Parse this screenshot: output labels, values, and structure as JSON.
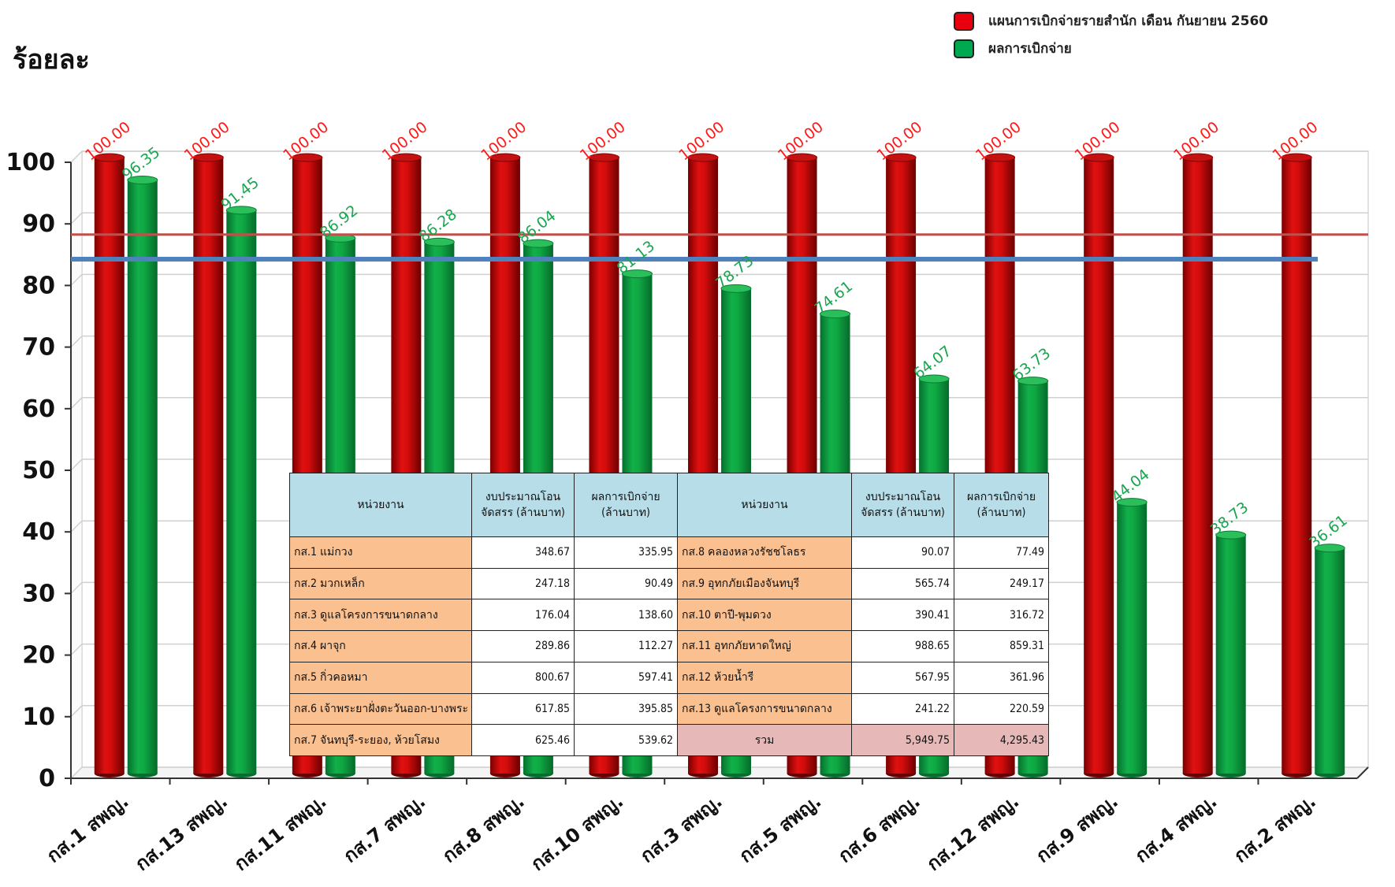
{
  "chart_data": {
    "type": "bar",
    "ylabel": "ร้อยละ",
    "ylim": [
      0,
      100
    ],
    "yticks": [
      0,
      10,
      20,
      30,
      40,
      50,
      60,
      70,
      80,
      90,
      100
    ],
    "grid": true,
    "legend_position": "top-right",
    "categories": [
      "กส.1 สพญ.",
      "กส.13 สพญ.",
      "กส.11 สพญ.",
      "กส.7 สพญ.",
      "กส.8 สพญ.",
      "กส.10 สพญ.",
      "กส.3 สพญ.",
      "กส.5 สพญ.",
      "กส.6 สพญ.",
      "กส.12 สพญ.",
      "กส.9 สพญ.",
      "กส.4 สพญ.",
      "กส.2 สพญ."
    ],
    "series": [
      {
        "name": "แผนการเบิกจ่ายรายสำนัก เดือน กันยายน 2560",
        "color": "#e01010",
        "values": [
          100,
          100,
          100,
          100,
          100,
          100,
          100,
          100,
          100,
          100,
          100,
          100,
          100
        ],
        "labels": [
          "100.00",
          "100.00",
          "100.00",
          "100.00",
          "100.00",
          "100.00",
          "100.00",
          "100.00",
          "100.00",
          "100.00",
          "100.00",
          "100.00",
          "100.00"
        ]
      },
      {
        "name": "ผลการเบิกจ่าย",
        "color": "#12b04a",
        "values": [
          96.35,
          91.45,
          86.92,
          86.28,
          86.04,
          81.13,
          78.73,
          74.61,
          64.07,
          63.73,
          44.04,
          38.73,
          36.61
        ],
        "labels": [
          "96.35",
          "91.45",
          "86.92",
          "86.28",
          "86.04",
          "81.13",
          "78.73",
          "74.61",
          "64.07",
          "63.73",
          "44.04",
          "38.73",
          "36.61"
        ]
      }
    ],
    "reference_lines": [
      {
        "value": 87.5,
        "color": "#c0504d"
      },
      {
        "value": 83.5,
        "color": "#4f81bd"
      }
    ]
  },
  "legend": {
    "plan_label": "แผนการเบิกจ่ายรายสำนัก เดือน กันยายน 2560",
    "result_label": "ผลการเบิกจ่าย",
    "plan_color": "#e8000e",
    "result_color": "#00a94f"
  },
  "table": {
    "headers": {
      "unit": "หน่วยงาน",
      "budget_line1": "งบประมาณโอน",
      "budget_line2": "จัดสรร (ล้านบาท)",
      "result_line1": "ผลการเบิกจ่าย",
      "result_line2": "(ล้านบาท)"
    },
    "rows": [
      {
        "left_unit": "กส.1 แม่กวง",
        "left_budget": "348.67",
        "left_result": "335.95",
        "right_unit": "กส.8  คลองหลวงรัชชโลธร",
        "right_budget": "90.07",
        "right_result": "77.49"
      },
      {
        "left_unit": "กส.2 มวกเหล็ก",
        "left_budget": "247.18",
        "left_result": "90.49",
        "right_unit": "กส.9  อุทกภัยเมืองจันทบุรี",
        "right_budget": "565.74",
        "right_result": "249.17"
      },
      {
        "left_unit": "กส.3 ดูแลโครงการขนาดกลาง",
        "left_budget": "176.04",
        "left_result": "138.60",
        "right_unit": "กส.10 ตาปี-พุมดวง",
        "right_budget": "390.41",
        "right_result": "316.72"
      },
      {
        "left_unit": "กส.4 ผาจุก",
        "left_budget": "289.86",
        "left_result": "112.27",
        "right_unit": "กส.11 อุทกภัยหาดใหญ่",
        "right_budget": "988.65",
        "right_result": "859.31"
      },
      {
        "left_unit": "กส.5 กิ่วคอหมา",
        "left_budget": "800.67",
        "left_result": "597.41",
        "right_unit": "กส.12 ห้วยน้ำรี",
        "right_budget": "567.95",
        "right_result": "361.96"
      },
      {
        "left_unit": "กส.6 เจ้าพระยาฝั่งตะวันออก-บางพระ",
        "left_budget": "617.85",
        "left_result": "395.85",
        "right_unit": "กส.13 ดูแลโครงการขนาดกลาง",
        "right_budget": "241.22",
        "right_result": "220.59"
      }
    ],
    "last_row": {
      "left_unit": "กส.7 จันทบุรี-ระยอง, ห้วยโสมง",
      "left_budget": "625.46",
      "left_result": "539.62"
    },
    "total": {
      "label": "รวม",
      "budget": "5,949.75",
      "result": "4,295.43"
    }
  }
}
